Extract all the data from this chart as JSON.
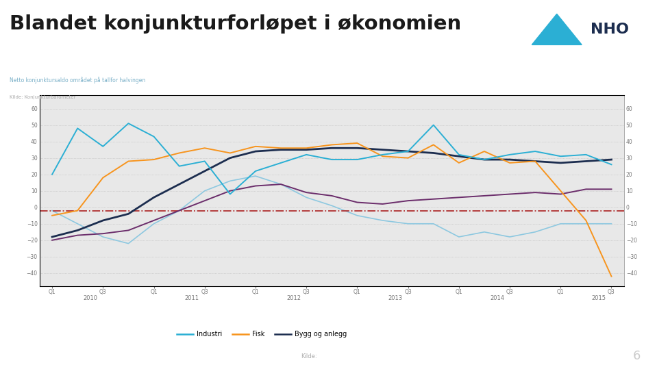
{
  "title": "Blandet konjunkturforløpet i økonomien",
  "subtitle": "Netto konjunktursaldo området på tallfor halvingen",
  "source_label": "Kilde:",
  "plot_bg": "#e8e8e8",
  "fig_bg": "#ffffff",
  "yticks": [
    -40,
    -30,
    -20,
    -10,
    0,
    10,
    20,
    30,
    40,
    50,
    60
  ],
  "ylim": [
    -48,
    68
  ],
  "xlabel_years": [
    "2010",
    "2011",
    "2012",
    "2013",
    "2014",
    "2015"
  ],
  "x_quarter_labels": [
    "Q1",
    "Q3",
    "Q1",
    "Q3",
    "Q1",
    "Q3",
    "Q1",
    "Q3",
    "Q1",
    "Q3",
    "Q1",
    "Q3"
  ],
  "n_points": 23,
  "series": {
    "industri": {
      "label": "Industri",
      "color": "#2bafd4",
      "linewidth": 1.4,
      "values": [
        20,
        48,
        37,
        51,
        43,
        25,
        28,
        8,
        22,
        27,
        32,
        29,
        29,
        32,
        34,
        50,
        32,
        29,
        32,
        34,
        31,
        32,
        26
      ]
    },
    "fisk": {
      "label": "Fisk",
      "color": "#f7941d",
      "linewidth": 1.4,
      "values": [
        -5,
        -2,
        18,
        28,
        29,
        33,
        36,
        33,
        37,
        36,
        36,
        38,
        39,
        31,
        30,
        38,
        27,
        34,
        27,
        28,
        10,
        -8,
        -42
      ]
    },
    "bygg": {
      "label": "Bygg og anlegg",
      "color": "#1c2d4f",
      "linewidth": 2.0,
      "values": [
        -18,
        -14,
        -8,
        -4,
        6,
        14,
        22,
        30,
        34,
        35,
        35,
        36,
        36,
        35,
        34,
        33,
        31,
        29,
        29,
        28,
        27,
        28,
        29
      ]
    },
    "purple": {
      "label": "",
      "color": "#6b2d6b",
      "linewidth": 1.4,
      "values": [
        -20,
        -17,
        -16,
        -14,
        -8,
        -2,
        4,
        10,
        13,
        14,
        9,
        7,
        3,
        2,
        4,
        5,
        6,
        7,
        8,
        9,
        8,
        11,
        11
      ]
    },
    "lightblue": {
      "label": "",
      "color": "#8dc8e0",
      "linewidth": 1.2,
      "values": [
        -2,
        -10,
        -18,
        -22,
        -10,
        -2,
        10,
        16,
        19,
        14,
        6,
        1,
        -5,
        -8,
        -10,
        -10,
        -18,
        -15,
        -18,
        -15,
        -10,
        -10,
        -10
      ]
    },
    "redline": {
      "color": "#b03030",
      "linewidth": 1.3,
      "linestyle": "-.",
      "value": -2
    }
  },
  "legend_entries": [
    {
      "label": "Industri",
      "color": "#2bafd4"
    },
    {
      "label": "Fisk",
      "color": "#f7941d"
    },
    {
      "label": "Bygg og anlegg",
      "color": "#1c2d4f"
    }
  ]
}
